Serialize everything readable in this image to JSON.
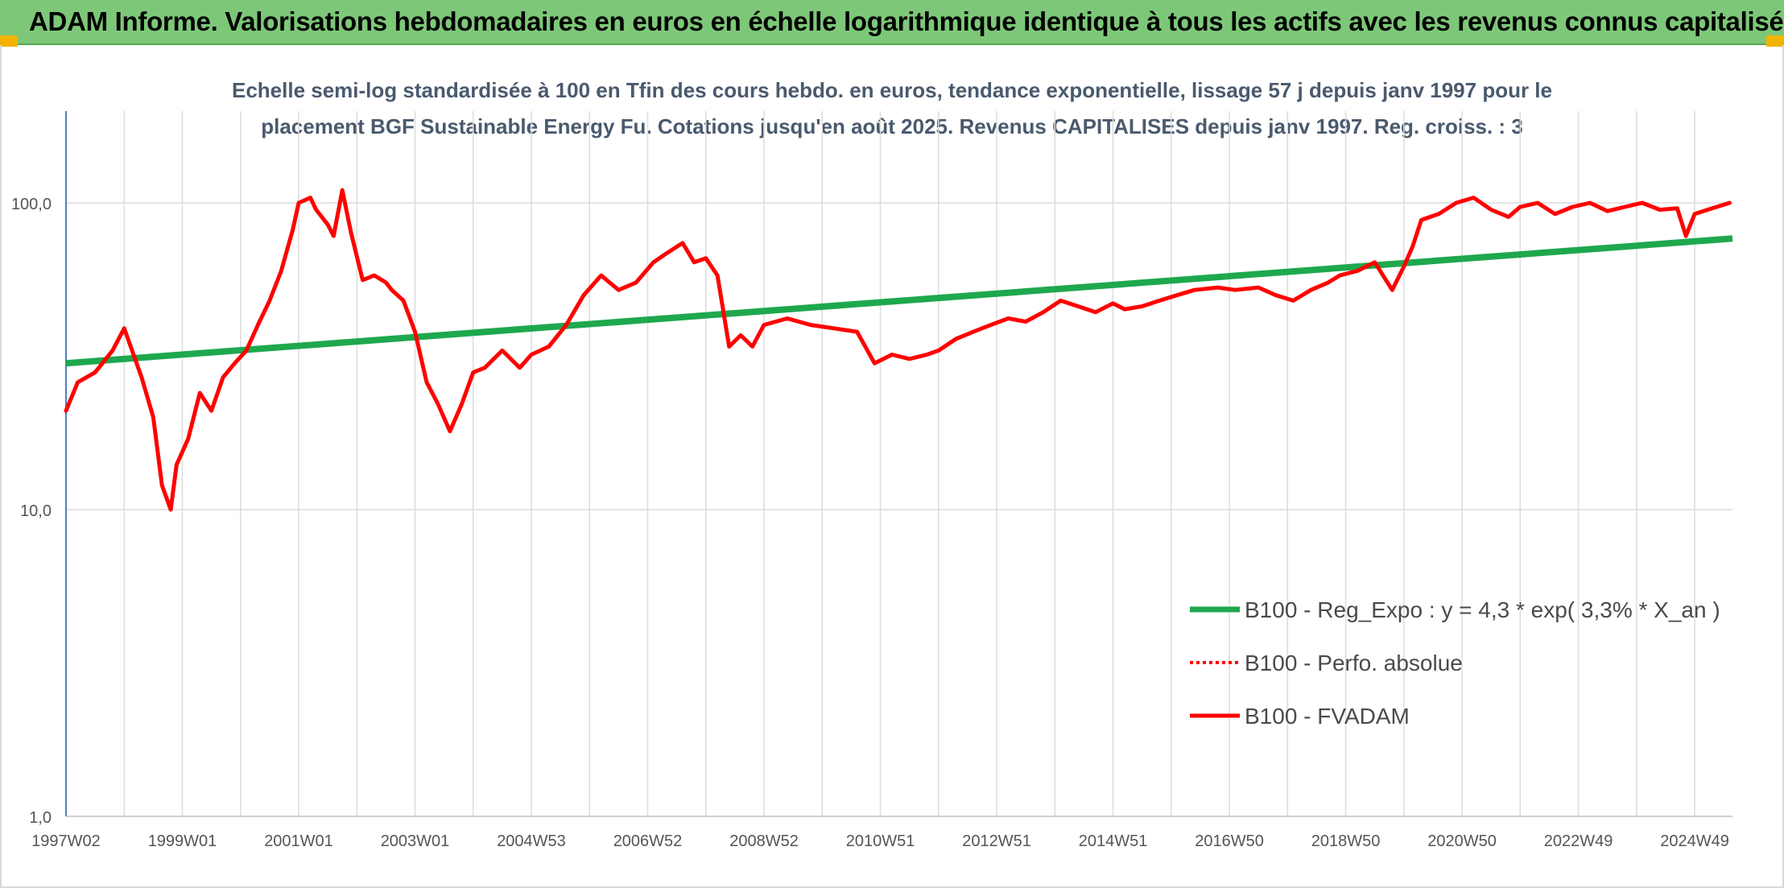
{
  "header": {
    "title": "ADAM Informe. Valorisations hebdomadaires en euros en échelle logarithmique identique à tous les actifs avec les revenus connus capitalisés"
  },
  "colors": {
    "banner": "#7dc878",
    "corner_accent": "#f2b400",
    "trend": "#1ea84e",
    "price": "#ff0000",
    "grid": "#dcdcdc",
    "axis": "#4f7fbf"
  },
  "chart_data": {
    "type": "line",
    "title_line1": "Echelle semi-log standardisée à 100 en Tfin des cours hebdo. en euros, tendance exponentielle, lissage 57 j depuis janv 1997 pour le",
    "title_line2": "placement BGF Sustainable Energy Fu. Cotations jusqu'en août 2025. Revenus CAPITALISES depuis janv 1997. Reg. croiss. : 3",
    "y_scale": "log",
    "ylim": [
      1,
      180
    ],
    "y_ticks": [
      1,
      10,
      100
    ],
    "y_tick_labels": [
      "1,0",
      "10,0",
      "100,0"
    ],
    "xlim": [
      1997.0,
      2025.65
    ],
    "x_ticks": [
      1997.0,
      1999.0,
      2001.0,
      2003.0,
      2005.0,
      2007.0,
      2009.0,
      2011.0,
      2013.0,
      2015.0,
      2017.0,
      2019.0,
      2021.0,
      2023.0,
      2025.0
    ],
    "x_tick_labels": [
      "1997W02",
      "1999W01",
      "2001W01",
      "2003W01",
      "2004W53",
      "2006W52",
      "2008W52",
      "2010W51",
      "2012W51",
      "2014W51",
      "2016W50",
      "2018W50",
      "2020W50",
      "2022W49",
      "2024W49"
    ],
    "grid": true,
    "legend_position": "right",
    "series": [
      {
        "name": "B100 - Reg_Expo : y = 4,3 * exp( 3,3% *  X_an )",
        "style": "solid-green",
        "x": [
          1997.0,
          2025.65
        ],
        "y": [
          30.0,
          76.5
        ]
      },
      {
        "name": "B100 - Perfo. absolue",
        "style": "dotted-red",
        "x": [],
        "y": []
      },
      {
        "name": "B100 - FVADAM",
        "style": "solid-red",
        "x": [
          1997.0,
          1997.2,
          1997.5,
          1997.8,
          1998.0,
          1998.3,
          1998.5,
          1998.65,
          1998.8,
          1998.9,
          1999.1,
          1999.3,
          1999.5,
          1999.7,
          1999.9,
          2000.1,
          2000.3,
          2000.5,
          2000.7,
          2000.9,
          2001.0,
          2001.2,
          2001.3,
          2001.5,
          2001.6,
          2001.75,
          2001.9,
          2002.1,
          2002.3,
          2002.5,
          2002.6,
          2002.8,
          2003.0,
          2003.2,
          2003.4,
          2003.6,
          2003.8,
          2004.0,
          2004.2,
          2004.5,
          2004.8,
          2005.0,
          2005.3,
          2005.6,
          2005.9,
          2006.2,
          2006.5,
          2006.8,
          2007.1,
          2007.3,
          2007.6,
          2007.8,
          2008.0,
          2008.2,
          2008.4,
          2008.6,
          2008.8,
          2009.0,
          2009.4,
          2009.8,
          2010.2,
          2010.6,
          2010.9,
          2011.2,
          2011.5,
          2011.8,
          2012.0,
          2012.3,
          2012.6,
          2012.9,
          2013.2,
          2013.5,
          2013.8,
          2014.1,
          2014.4,
          2014.7,
          2015.0,
          2015.2,
          2015.5,
          2015.8,
          2016.1,
          2016.4,
          2016.8,
          2017.1,
          2017.5,
          2017.8,
          2018.1,
          2018.4,
          2018.7,
          2018.9,
          2019.2,
          2019.5,
          2019.8,
          2020.0,
          2020.15,
          2020.3,
          2020.6,
          2020.9,
          2021.2,
          2021.5,
          2021.8,
          2022.0,
          2022.3,
          2022.6,
          2022.9,
          2023.2,
          2023.5,
          2023.8,
          2024.1,
          2024.4,
          2024.7,
          2024.85,
          2025.0,
          2025.3,
          2025.6
        ],
        "y": [
          21,
          26,
          28,
          33,
          39,
          27,
          20,
          12,
          10,
          14,
          17,
          24,
          21,
          27,
          30,
          33,
          40,
          48,
          60,
          82,
          100,
          104,
          95,
          85,
          78,
          110,
          80,
          56,
          58,
          55,
          52,
          48,
          38,
          26,
          22,
          18,
          22,
          28,
          29,
          33,
          29,
          32,
          34,
          40,
          50,
          58,
          52,
          55,
          64,
          68,
          74,
          64,
          66,
          58,
          34,
          37,
          34,
          40,
          42,
          40,
          39,
          38,
          30,
          32,
          31,
          32,
          33,
          36,
          38,
          40,
          42,
          41,
          44,
          48,
          46,
          44,
          47,
          45,
          46,
          48,
          50,
          52,
          53,
          52,
          53,
          50,
          48,
          52,
          55,
          58,
          60,
          64,
          52,
          62,
          72,
          88,
          92,
          100,
          104,
          95,
          90,
          97,
          100,
          92,
          97,
          100,
          94,
          97,
          100,
          95,
          96,
          78,
          92,
          96,
          100
        ]
      }
    ]
  }
}
